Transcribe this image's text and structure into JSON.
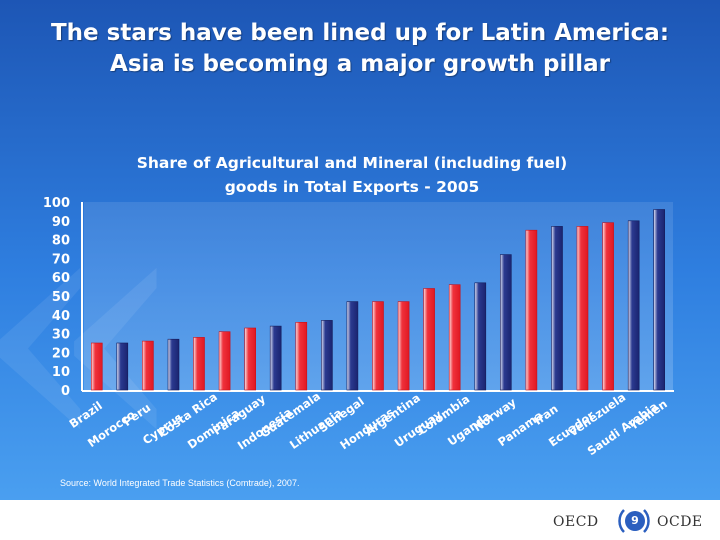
{
  "slide": {
    "title_line1": "The stars have been lined up for Latin America:",
    "title_line2": "Asia is becoming a major growth pillar"
  },
  "chart_data": {
    "type": "bar",
    "title_line1": "Share of Agricultural and Mineral (including fuel)",
    "title_line2": "goods in Total Exports - 2005",
    "ylim": [
      0,
      100
    ],
    "yticks": [
      0,
      10,
      20,
      30,
      40,
      50,
      60,
      70,
      80,
      90,
      100
    ],
    "grid": false,
    "categories": [
      "Brazil",
      "Morocco",
      "Peru",
      "Cyprus",
      "Costa Rica",
      "Dominica",
      "Paraguay",
      "Indonesia",
      "Guatemala",
      "Lithuania",
      "Senegal",
      "Honduras",
      "Argentina",
      "Uruguay",
      "Colombia",
      "Uganda",
      "Norway",
      "Panama",
      "Iran",
      "Ecuador",
      "Venezuela",
      "Saudi Arabia",
      "Yemen"
    ],
    "values": [
      25,
      25,
      26,
      27,
      28,
      31,
      33,
      34,
      36,
      37,
      47,
      47,
      47,
      54,
      56,
      57,
      72,
      85,
      87,
      87,
      89,
      90,
      96
    ],
    "bar_colors": [
      "red",
      "blue",
      "red",
      "blue",
      "red",
      "red",
      "red",
      "blue",
      "red",
      "blue",
      "blue",
      "red",
      "red",
      "red",
      "red",
      "blue",
      "blue",
      "red",
      "blue",
      "red",
      "red",
      "blue",
      "blue"
    ],
    "colors": {
      "red": "#f0323c",
      "blue": "#2b3a90"
    }
  },
  "source": "Source: World Integrated Trade Statistics (Comtrade), 2007.",
  "footer": {
    "oecd_en": "OECD",
    "oecd_fr": "OCDE",
    "page_number": "9"
  }
}
